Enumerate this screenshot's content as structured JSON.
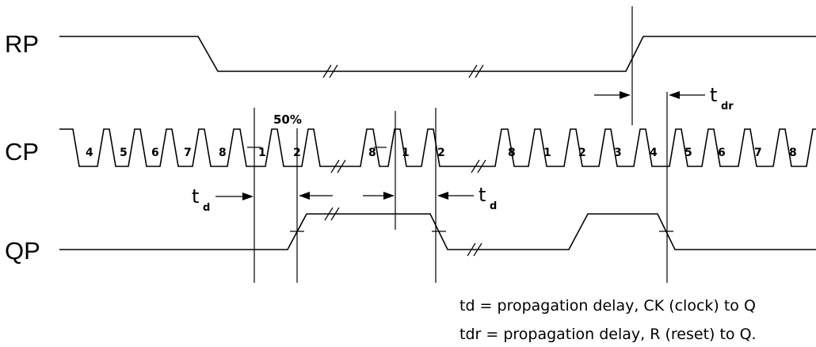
{
  "signals": {
    "rp": "RP",
    "cp": "CP",
    "qp": "QP"
  },
  "clock_pulses": {
    "segment1": [
      "4",
      "5",
      "6",
      "7",
      "8",
      "1",
      "2"
    ],
    "segment2": [
      "8",
      "1",
      "2"
    ],
    "segment3": [
      "8",
      "1",
      "2",
      "3",
      "4",
      "5",
      "6",
      "7",
      "8"
    ]
  },
  "threshold": "50%",
  "timing": {
    "td_symbol": "t",
    "td_sub": "d",
    "tdr_symbol": "t",
    "tdr_sub": "dr"
  },
  "notes": {
    "line1": "td = propagation delay, CK (clock) to Q",
    "line2": "tdr = propagation delay, R (reset) to Q."
  }
}
